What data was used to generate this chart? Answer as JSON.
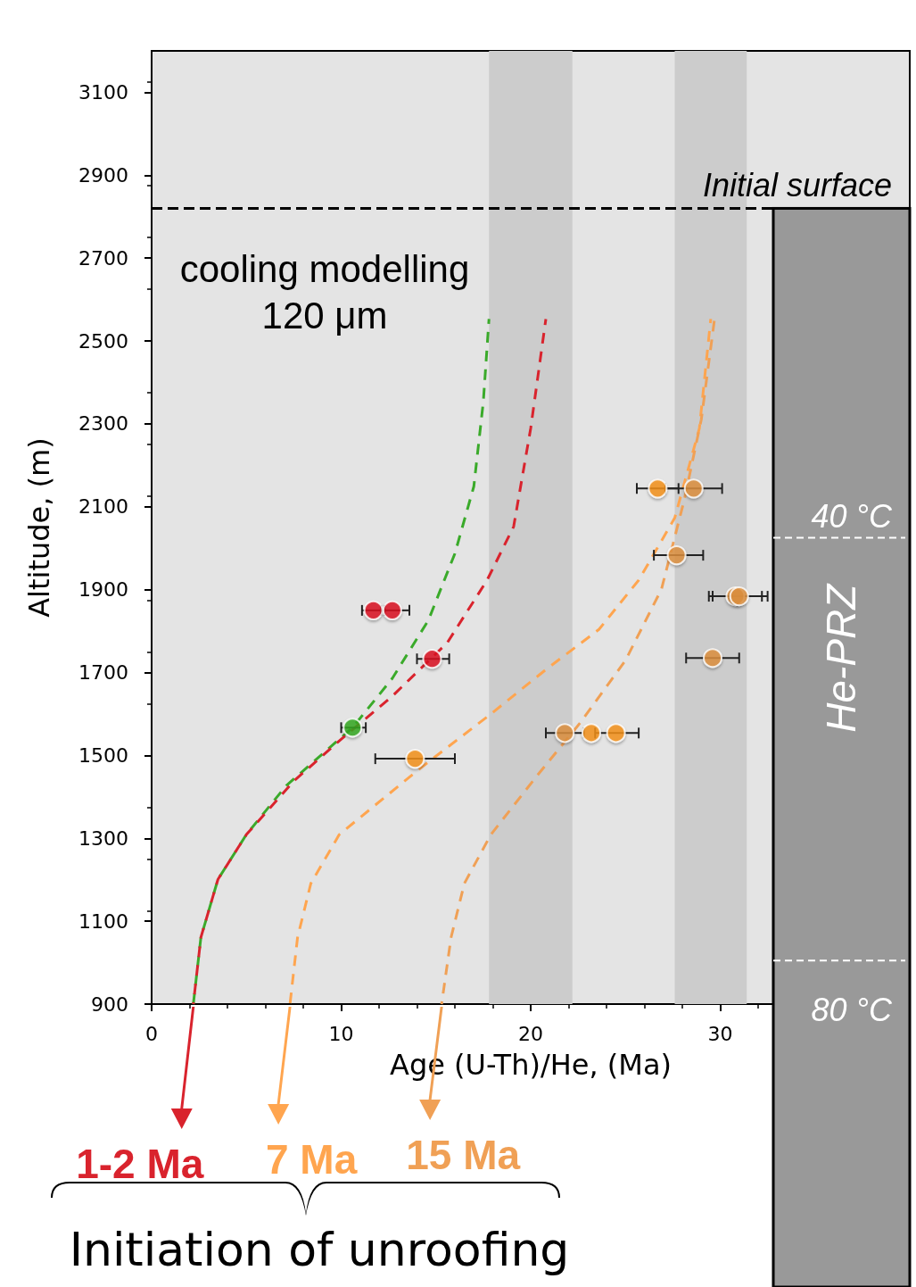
{
  "chart_data": {
    "type": "scatter",
    "xlabel": "Age (U-Th)/He, (Ma)",
    "ylabel": "Altitude, (m)",
    "xlim": [
      0,
      40
    ],
    "xticks": [
      0,
      10,
      20,
      30
    ],
    "ylim": [
      900,
      3200
    ],
    "yticks": [
      900,
      1100,
      1300,
      1500,
      1700,
      1900,
      2100,
      2300,
      2500,
      2700,
      2900,
      3100
    ],
    "series": [
      {
        "type": "line",
        "line_style": "dashed",
        "color": "#3aaa2a",
        "x": [
          2.2,
          2.6,
          3.5,
          5.0,
          7.1,
          10.6,
          12.7,
          14.6,
          16.0,
          17.0,
          17.5,
          17.8
        ],
        "values": [
          900,
          1061,
          1201,
          1309,
          1427,
          1567,
          1686,
          1826,
          1987,
          2149,
          2353,
          2553
        ]
      },
      {
        "type": "line",
        "line_style": "dashed",
        "color": "#d9232d",
        "x": [
          2.2,
          2.6,
          3.5,
          5.0,
          7.5,
          9.9,
          12.7,
          15.6,
          17.7,
          19.1,
          20.0,
          20.8
        ],
        "values": [
          900,
          1061,
          1201,
          1309,
          1438,
          1535,
          1643,
          1772,
          1923,
          2052,
          2289,
          2553
        ]
      },
      {
        "type": "line",
        "line_style": "dashed",
        "color": "#ffa54f",
        "x": [
          7.3,
          7.7,
          8.4,
          9.9,
          14.2,
          17.9,
          20.8,
          23.6,
          25.7,
          27.6,
          28.9,
          29.5
        ],
        "values": [
          900,
          1061,
          1191,
          1309,
          1470,
          1600,
          1707,
          1804,
          1923,
          2073,
          2289,
          2553
        ]
      },
      {
        "type": "line",
        "line_style": "dashed",
        "color": "#f0a055",
        "x": [
          15.3,
          15.8,
          16.5,
          17.9,
          20.3,
          22.6,
          25.0,
          26.9,
          28.1,
          29.0,
          29.7
        ],
        "values": [
          900,
          1061,
          1191,
          1309,
          1449,
          1578,
          1729,
          1901,
          2116,
          2310,
          2553
        ]
      },
      {
        "marker": "circle",
        "color": "#dd1020",
        "x": [
          11.7,
          12.7,
          14.8
        ],
        "values": [
          1850,
          1850,
          1733
        ],
        "xerrors": [
          [
            11.1,
            12.3
          ],
          [
            12.1,
            13.6
          ],
          [
            14.0,
            15.7
          ]
        ]
      },
      {
        "marker": "circle",
        "color": "#33aa22",
        "x": [
          10.6
        ],
        "values": [
          1567
        ],
        "xerrors": [
          [
            10.0,
            11.3
          ]
        ]
      },
      {
        "marker": "circle",
        "color": "#f7941d",
        "x": [
          13.9,
          26.7,
          23.2,
          24.5
        ],
        "values": [
          1492,
          2144,
          1554,
          1554
        ],
        "xerrors": [
          [
            11.8,
            16.0
          ],
          [
            25.6,
            27.8
          ],
          null,
          [
            23.4,
            25.7
          ]
        ]
      },
      {
        "marker": "circle",
        "color": "#e0913f",
        "x": [
          28.6,
          27.7,
          30.8,
          31.0,
          29.6,
          21.8
        ],
        "values": [
          2144,
          1983,
          1884,
          1884,
          1735,
          1554
        ],
        "xerrors": [
          [
            27.1,
            30.1
          ],
          [
            26.5,
            29.1
          ],
          [
            29.4,
            32.2
          ],
          [
            29.6,
            32.5
          ],
          [
            28.2,
            31.0
          ],
          [
            20.8,
            22.8
          ]
        ]
      }
    ],
    "bands": [
      {
        "axis": "x",
        "from": 17.8,
        "to": 22.2,
        "color": "#cccccc"
      },
      {
        "axis": "x",
        "from": 27.6,
        "to": 31.4,
        "color": "#cccccc"
      },
      {
        "axis": "x",
        "from": 32.8,
        "to": 40,
        "color": "#999999",
        "label": "He-PRZ"
      }
    ],
    "ref_lines": [
      {
        "axis": "y",
        "value": 2820,
        "label": "Initial surface",
        "color": "#000000",
        "line_style": "dashed"
      },
      {
        "axis": "y",
        "value": 2025,
        "label": "40 °C",
        "color": "#ffffff",
        "line_style": "dashed"
      },
      {
        "axis": "y",
        "value": 1005,
        "label": "80 °C",
        "color": "#ffffff",
        "line_style": "dashed"
      }
    ],
    "annotations": [
      "cooling modelling\n120 μm",
      "1-2 Ma",
      "7 Ma",
      "15 Ma",
      "Initiation of unroofing"
    ]
  }
}
